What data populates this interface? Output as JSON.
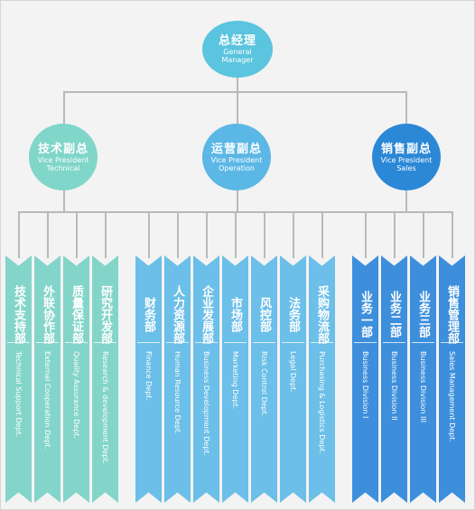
{
  "root": {
    "zh": "总经理",
    "en1": "General",
    "en2": "Manager",
    "color": "#5bc4de"
  },
  "vps": [
    {
      "zh": "技术副总",
      "en1": "Vice President",
      "en2": "Technical",
      "color": "#7fd6c9"
    },
    {
      "zh": "运营副总",
      "en1": "Vice President",
      "en2": "Operation",
      "color": "#5bb7e5"
    },
    {
      "zh": "销售副总",
      "en1": "Vice President",
      "en2": "Sales",
      "color": "#2b88d6"
    }
  ],
  "groups": [
    {
      "color": "#84d5c9",
      "depts": [
        {
          "zh": "技术支持部",
          "en": "Technical Support Dept."
        },
        {
          "zh": "外联协作部",
          "en": "External Cooperation Dept."
        },
        {
          "zh": "质量保证部",
          "en": "Quality Assurance Dept."
        },
        {
          "zh": "研究开发部",
          "en": "Research & development Dept."
        }
      ]
    },
    {
      "color": "#6cbfe8",
      "depts": [
        {
          "zh": "财务部",
          "en": "Finance Dept."
        },
        {
          "zh": "人力资源部",
          "en": "Human Resource Dept."
        },
        {
          "zh": "企业发展部",
          "en": "Business Development Dept."
        },
        {
          "zh": "市场部",
          "en": "Marketing Dept."
        },
        {
          "zh": "风控部",
          "en": "Risk Control Dept."
        },
        {
          "zh": "法务部",
          "en": "Legal Dept."
        },
        {
          "zh": "采购物流部",
          "en": "Purchasing & Logistics Dept."
        }
      ]
    },
    {
      "color": "#3d8fdc",
      "depts": [
        {
          "zh": "业务一部",
          "en": "Business Division I"
        },
        {
          "zh": "业务二部",
          "en": "Business Division II"
        },
        {
          "zh": "业务三部",
          "en": "Business Division III"
        },
        {
          "zh": "销售管理部",
          "en": "Sales Management Dept."
        }
      ]
    }
  ]
}
